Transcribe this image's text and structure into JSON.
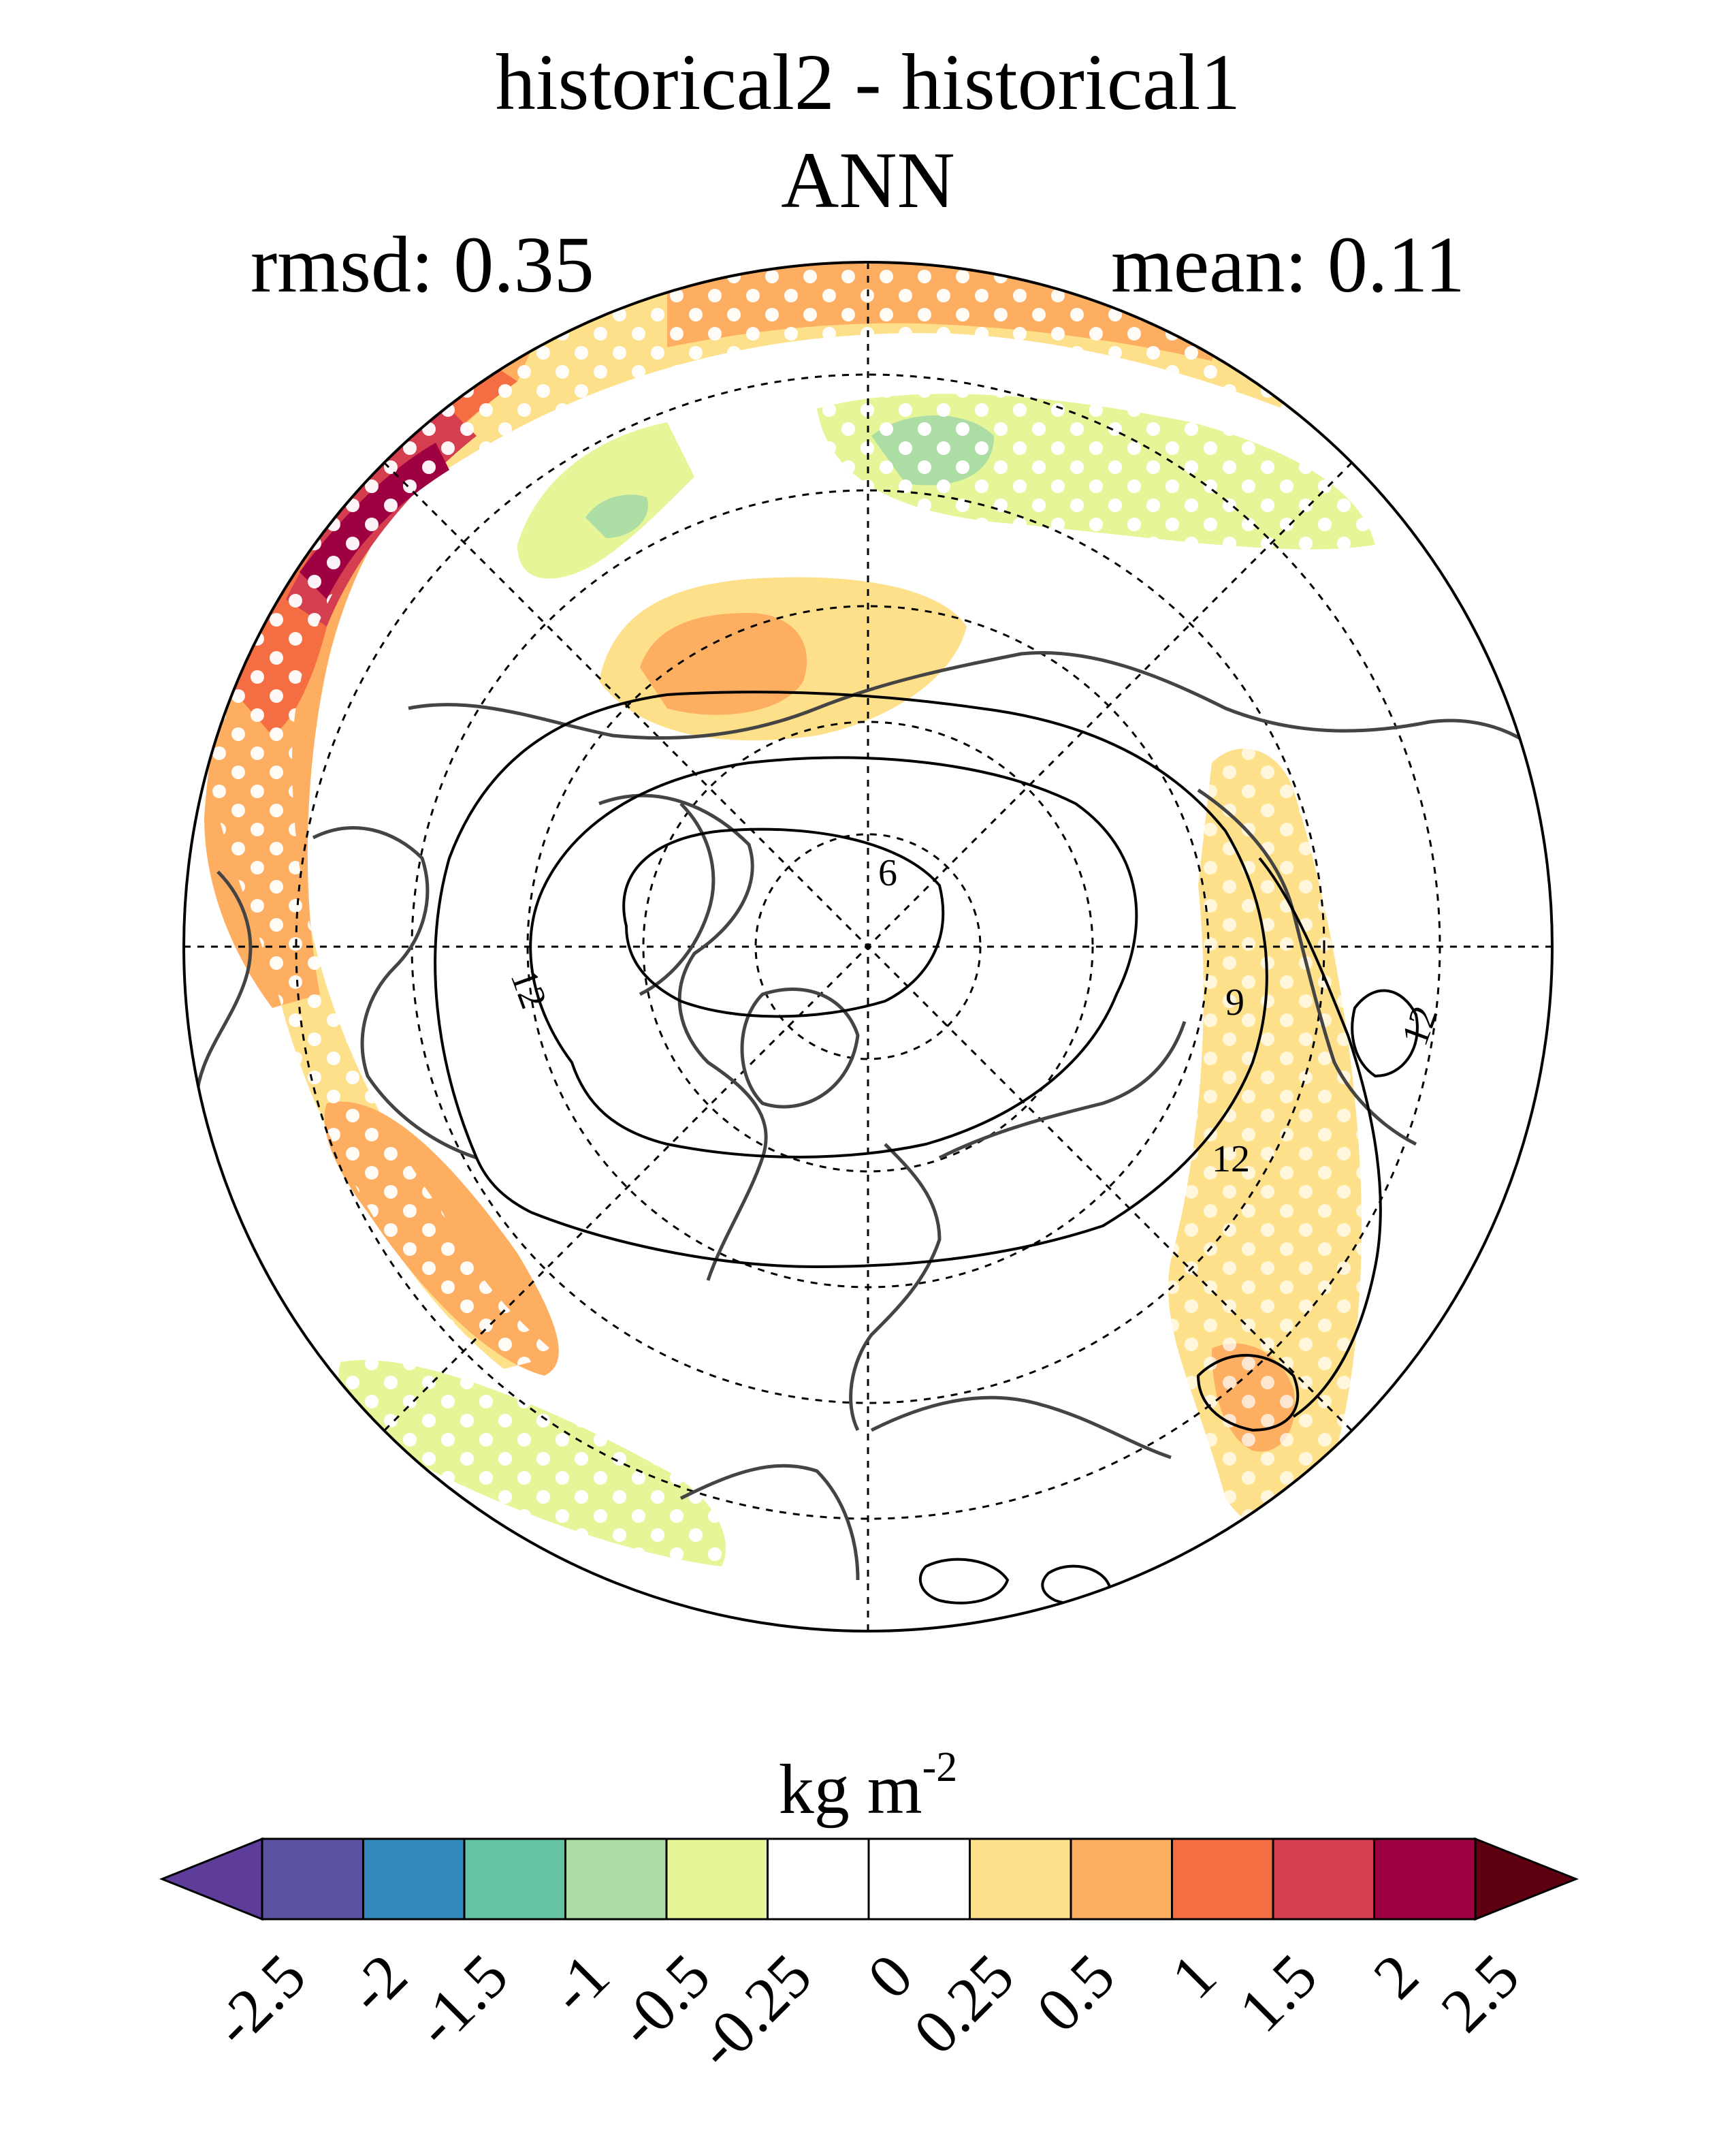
{
  "header": {
    "title": "historical2 - historical1",
    "subtitle": "ANN",
    "rmsd_label": "rmsd: 0.35",
    "mean_label": "mean: 0.11"
  },
  "map": {
    "projection": "north-polar-stereographic",
    "variable_units": "kg m",
    "units_exponent": "-2",
    "contour_labels": [
      "6",
      "9",
      "12",
      "12",
      "12"
    ],
    "stippling": "white dots over significant regions",
    "colorbar": {
      "colors": [
        "#5e3c99",
        "#5b52a3",
        "#3288bd",
        "#66c2a5",
        "#abdda4",
        "#e6f598",
        "#ffffff",
        "#ffffff",
        "#fee08b",
        "#fdae61",
        "#f46d43",
        "#d53e4f",
        "#9e0142",
        "#5e0010"
      ],
      "levels": [
        "-2.5",
        "-2",
        "-1.5",
        "-1",
        "-0.5",
        "-0.25",
        "0",
        "0.25",
        "0.5",
        "1",
        "1.5",
        "2",
        "2.5"
      ]
    }
  }
}
